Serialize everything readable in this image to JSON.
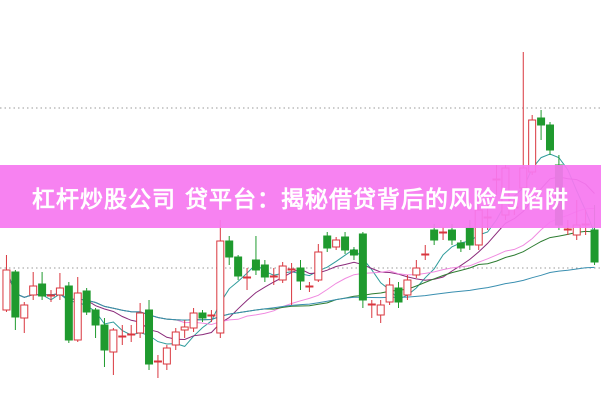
{
  "title": "杠杆炒股公司 贷平台：揭秘借贷背后的风险与陷阱",
  "colors": {
    "banner": "#f678f0",
    "up": "#d9363e",
    "down": "#1f9a2e",
    "grid": "#999999",
    "ma": [
      "#2f9c9c",
      "#8a2a7a",
      "#f08ae0",
      "#2e7d32",
      "#3a8fb0"
    ]
  },
  "chart_data": {
    "type": "candlestick",
    "ylim": [
      0,
      400
    ],
    "grid": "dotted-horizontal",
    "moving_averages": [
      5,
      10,
      20,
      30,
      60
    ],
    "candles": [
      [
        90,
        130,
        145,
        88
      ],
      [
        128,
        83,
        130,
        70
      ],
      [
        82,
        95,
        98,
        67
      ],
      [
        105,
        114,
        128,
        100
      ],
      [
        116,
        104,
        128,
        100
      ],
      [
        104,
        105,
        110,
        98
      ],
      [
        105,
        112,
        127,
        100
      ],
      [
        114,
        60,
        118,
        57
      ],
      [
        60,
        107,
        123,
        58
      ],
      [
        109,
        88,
        112,
        85
      ],
      [
        90,
        75,
        92,
        62
      ],
      [
        75,
        50,
        82,
        33
      ],
      [
        48,
        70,
        72,
        25
      ],
      [
        63,
        64,
        75,
        55
      ],
      [
        65,
        66,
        75,
        58
      ],
      [
        67,
        87,
        97,
        62
      ],
      [
        90,
        36,
        100,
        30
      ],
      [
        38,
        39,
        45,
        22
      ],
      [
        36,
        52,
        55,
        30
      ],
      [
        55,
        68,
        72,
        50
      ],
      [
        70,
        73,
        80,
        62
      ],
      [
        72,
        87,
        92,
        68
      ],
      [
        87,
        82,
        90,
        78
      ],
      [
        84,
        85,
        90,
        78
      ],
      [
        67,
        159,
        180,
        62
      ],
      [
        159,
        143,
        164,
        135
      ],
      [
        143,
        124,
        145,
        120
      ],
      [
        122,
        123,
        132,
        110
      ],
      [
        140,
        130,
        164,
        125
      ],
      [
        135,
        123,
        140,
        118
      ],
      [
        123,
        124,
        132,
        115
      ],
      [
        120,
        134,
        138,
        117
      ],
      [
        130,
        131,
        137,
        95
      ],
      [
        132,
        119,
        140,
        110
      ],
      [
        113,
        114,
        118,
        108
      ],
      [
        120,
        148,
        156,
        118
      ],
      [
        164,
        152,
        168,
        148
      ],
      [
        153,
        160,
        163,
        150
      ],
      [
        163,
        150,
        168,
        146
      ],
      [
        150,
        145,
        153,
        140
      ],
      [
        166,
        100,
        168,
        92
      ],
      [
        95,
        96,
        100,
        82
      ],
      [
        85,
        95,
        100,
        77
      ],
      [
        98,
        115,
        122,
        95
      ],
      [
        112,
        98,
        118,
        92
      ],
      [
        105,
        120,
        125,
        100
      ],
      [
        125,
        132,
        140,
        122
      ],
      [
        145,
        146,
        155,
        140
      ],
      [
        170,
        160,
        176,
        155
      ],
      [
        167,
        168,
        173,
        160
      ],
      [
        170,
        160,
        176,
        155
      ],
      [
        157,
        152,
        160,
        148
      ],
      [
        172,
        155,
        180,
        150
      ],
      [
        155,
        190,
        195,
        150
      ],
      [
        182,
        183,
        195,
        170
      ],
      [
        220,
        221,
        235,
        205
      ],
      [
        185,
        232,
        235,
        180
      ],
      [
        192,
        193,
        200,
        185
      ],
      [
        212,
        232,
        348,
        205
      ],
      [
        228,
        280,
        285,
        225
      ],
      [
        282,
        275,
        290,
        260
      ],
      [
        275,
        250,
        278,
        245
      ],
      [
        235,
        175,
        245,
        170
      ],
      [
        170,
        171,
        180,
        165
      ],
      [
        165,
        175,
        200,
        160
      ],
      [
        175,
        176,
        190,
        165
      ],
      [
        170,
        138,
        195,
        135
      ]
    ]
  }
}
